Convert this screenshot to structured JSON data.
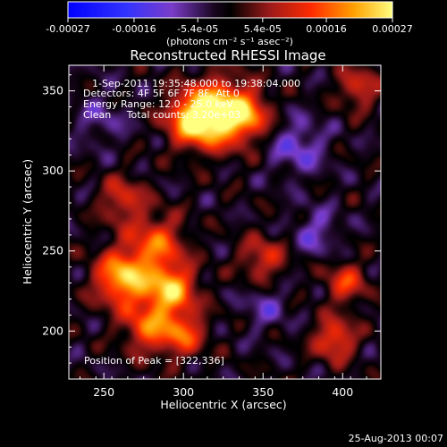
{
  "colorbar": {
    "tick_labels": [
      "-0.00027",
      "-0.00016",
      "-5.4e-05",
      "5.4e-05",
      "0.00016",
      "0.00027"
    ],
    "tick_values": [
      -0.00027,
      -0.00016,
      -5.4e-05,
      5.4e-05,
      0.00016,
      0.00027
    ],
    "range": [
      -0.00027,
      0.00027
    ],
    "unit_label": "(photons cm⁻² s⁻¹ asec⁻²)"
  },
  "chart_data": {
    "type": "heatmap",
    "title": "Reconstructed RHESSI Image",
    "xlabel": "Heliocentric X (arcsec)",
    "ylabel": "Heliocentric Y (arcsec)",
    "xlim": [
      228,
      424
    ],
    "ylim": [
      170,
      366
    ],
    "xticks": [
      250,
      300,
      350,
      400
    ],
    "yticks": [
      200,
      250,
      300,
      350
    ],
    "peak": [
      322,
      336
    ],
    "sources": [
      {
        "x": 322,
        "y": 336,
        "amp": 1.0,
        "s": 14
      },
      {
        "x": 305,
        "y": 332,
        "amp": 0.75,
        "s": 11
      },
      {
        "x": 340,
        "y": 335,
        "amp": 0.55,
        "s": 10
      },
      {
        "x": 262,
        "y": 233,
        "amp": 0.9,
        "s": 12
      },
      {
        "x": 292,
        "y": 226,
        "amp": 0.85,
        "s": 11
      },
      {
        "x": 283,
        "y": 255,
        "amp": 0.6,
        "s": 12
      },
      {
        "x": 278,
        "y": 202,
        "amp": 0.6,
        "s": 11
      },
      {
        "x": 300,
        "y": 198,
        "amp": 0.55,
        "s": 10
      },
      {
        "x": 262,
        "y": 282,
        "amp": 0.45,
        "s": 10
      },
      {
        "x": 350,
        "y": 245,
        "amp": 0.45,
        "s": 10
      },
      {
        "x": 402,
        "y": 230,
        "amp": 0.5,
        "s": 9
      },
      {
        "x": 395,
        "y": 195,
        "amp": 0.6,
        "s": 9
      },
      {
        "x": 410,
        "y": 352,
        "amp": 0.45,
        "s": 9
      },
      {
        "x": 372,
        "y": 315,
        "amp": -0.35,
        "s": 12
      },
      {
        "x": 383,
        "y": 262,
        "amp": -0.3,
        "s": 10
      },
      {
        "x": 352,
        "y": 215,
        "amp": -0.25,
        "s": 10
      },
      {
        "x": 248,
        "y": 332,
        "amp": -0.2,
        "s": 12
      }
    ]
  },
  "annotations": {
    "time_range": "1-Sep-2011 19:35:48.000 to 19:38:04.000",
    "detectors": "Detectors: 4F 5F 6F 7F 8F, Att 0",
    "energy_range": "Energy Range: 12.0 - 25.0 keV",
    "clean": "Clean     Total counts: 3.20e+03",
    "peak_position": "Position of Peak = [322,336]"
  },
  "footer": {
    "date": "25-Aug-2013 00:07"
  }
}
